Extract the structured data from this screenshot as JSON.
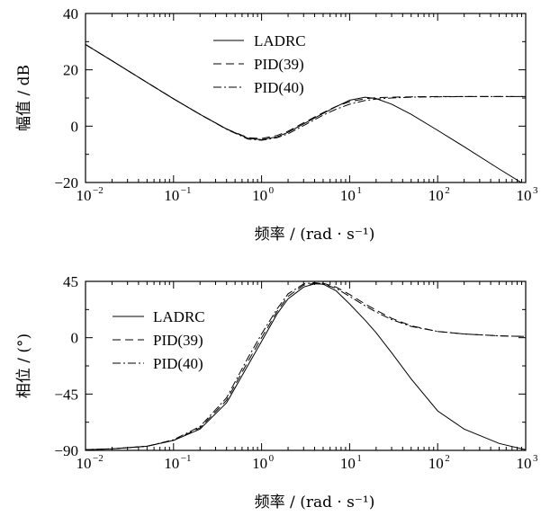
{
  "chart_data": [
    {
      "type": "line",
      "xscale": "log",
      "xlim": [
        0.01,
        1000
      ],
      "ylim": [
        -20,
        40
      ],
      "xlabel": "频率 / (rad · s⁻¹)",
      "ylabel": "幅值 / dB",
      "xticks": [
        0.01,
        0.1,
        1,
        10,
        100,
        1000
      ],
      "xtick_labels": [
        {
          "base": "10",
          "exp": "−2"
        },
        {
          "base": "10",
          "exp": "−1"
        },
        {
          "base": "10",
          "exp": "0"
        },
        {
          "base": "10",
          "exp": "1"
        },
        {
          "base": "10",
          "exp": "2"
        },
        {
          "base": "10",
          "exp": "3"
        }
      ],
      "yticks": [
        -20,
        0,
        20,
        40
      ],
      "ytick_labels": [
        "−20",
        "0",
        "20",
        "40"
      ],
      "grid": false,
      "legend_position": "top-center",
      "series": [
        {
          "name": "LADRC",
          "style": "solid",
          "x": [
            0.01,
            0.02,
            0.05,
            0.1,
            0.2,
            0.4,
            0.7,
            1,
            1.5,
            2,
            3,
            5,
            7,
            10,
            15,
            20,
            30,
            50,
            100,
            200,
            500,
            1000
          ],
          "y": [
            29,
            23.2,
            15.5,
            9.7,
            4.2,
            -1,
            -4.3,
            -4.8,
            -3.8,
            -2.2,
            0.8,
            4.5,
            6.9,
            9.2,
            10.3,
            9.8,
            7.8,
            4.2,
            -1.5,
            -7.3,
            -15.2,
            -21
          ]
        },
        {
          "name": "PID(39)",
          "style": "dashed",
          "x": [
            0.01,
            0.02,
            0.05,
            0.1,
            0.2,
            0.4,
            0.7,
            1,
            1.5,
            2,
            3,
            5,
            7,
            10,
            15,
            20,
            30,
            50,
            100,
            200,
            500,
            1000
          ],
          "y": [
            29,
            23.2,
            15.5,
            9.7,
            4.2,
            -1,
            -4.1,
            -4.4,
            -3.3,
            -1.8,
            1.2,
            4.8,
            7,
            8.7,
            9.7,
            10.1,
            10.3,
            10.4,
            10.5,
            10.5,
            10.5,
            10.5
          ]
        },
        {
          "name": "PID(40)",
          "style": "dashdot",
          "x": [
            0.01,
            0.02,
            0.05,
            0.1,
            0.2,
            0.4,
            0.7,
            1,
            1.5,
            2,
            3,
            5,
            7,
            10,
            15,
            20,
            30,
            50,
            100,
            200,
            500,
            1000
          ],
          "y": [
            29,
            23.2,
            15.5,
            9.7,
            4.2,
            -1.1,
            -4.6,
            -5,
            -4.1,
            -2.7,
            0.2,
            3.9,
            6,
            7.8,
            9.1,
            9.6,
            10,
            10.3,
            10.4,
            10.5,
            10.5,
            10.5
          ]
        }
      ],
      "legend_series_order": [
        "LADRC",
        "PID(39)",
        "PID(40)"
      ]
    },
    {
      "type": "line",
      "xscale": "log",
      "xlim": [
        0.01,
        1000
      ],
      "ylim": [
        -90,
        45
      ],
      "xlabel": "频率 / (rad · s⁻¹)",
      "ylabel": "相位 / (°)",
      "xticks": [
        0.01,
        0.1,
        1,
        10,
        100,
        1000
      ],
      "xtick_labels": [
        {
          "base": "10",
          "exp": "−2"
        },
        {
          "base": "10",
          "exp": "−1"
        },
        {
          "base": "10",
          "exp": "0"
        },
        {
          "base": "10",
          "exp": "1"
        },
        {
          "base": "10",
          "exp": "2"
        },
        {
          "base": "10",
          "exp": "3"
        }
      ],
      "yticks": [
        -90,
        -45,
        0,
        45
      ],
      "ytick_labels": [
        "−90",
        "−45",
        "0",
        "45"
      ],
      "grid": false,
      "legend_position": "left",
      "series": [
        {
          "name": "LADRC",
          "style": "solid",
          "x": [
            0.01,
            0.02,
            0.05,
            0.1,
            0.2,
            0.4,
            0.7,
            1,
            1.5,
            2,
            3,
            4,
            5,
            7,
            10,
            15,
            20,
            30,
            50,
            100,
            200,
            500,
            1000
          ],
          "y": [
            -89.4,
            -88.8,
            -86.7,
            -82,
            -73,
            -52,
            -22,
            -3,
            19,
            31,
            40.5,
            43,
            42.8,
            37.5,
            27,
            14,
            4,
            -12,
            -33,
            -58.5,
            -73,
            -84.5,
            -89.5
          ]
        },
        {
          "name": "PID(39)",
          "style": "dashed",
          "x": [
            0.01,
            0.02,
            0.05,
            0.1,
            0.2,
            0.4,
            0.7,
            1,
            1.5,
            2,
            3,
            4,
            5,
            7,
            10,
            15,
            20,
            30,
            50,
            100,
            200,
            500,
            1000
          ],
          "y": [
            -89.4,
            -88.8,
            -86.7,
            -82,
            -72,
            -50,
            -19,
            0,
            21,
            33,
            42,
            43.5,
            43.5,
            40.5,
            34.5,
            27,
            22,
            15.5,
            9.5,
            5,
            3,
            1.5,
            1
          ]
        },
        {
          "name": "PID(40)",
          "style": "dashdot",
          "x": [
            0.01,
            0.02,
            0.05,
            0.1,
            0.2,
            0.4,
            0.7,
            1,
            1.5,
            2,
            3,
            4,
            5,
            7,
            10,
            15,
            20,
            30,
            50,
            100,
            200,
            500,
            1000
          ],
          "y": [
            -89.4,
            -88.8,
            -86.6,
            -81.5,
            -71,
            -48,
            -16,
            3,
            23,
            35,
            43,
            44,
            43,
            39.5,
            33,
            25.5,
            20.5,
            14.5,
            9,
            5,
            3,
            1.5,
            1
          ]
        }
      ],
      "legend_series_order": [
        "LADRC",
        "PID(39)",
        "PID(40)"
      ]
    }
  ]
}
